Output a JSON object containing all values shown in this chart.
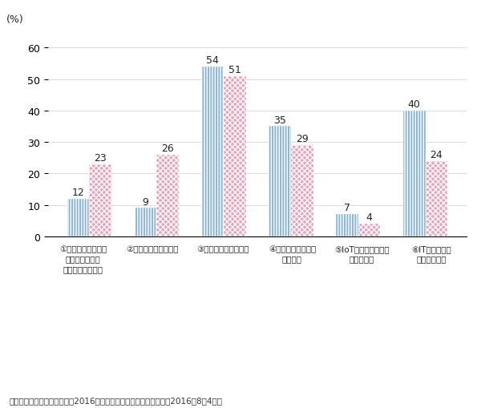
{
  "categories_lines": [
    [
      "①マイナンバー制度",
      "導入等の外的な",
      "制度改正への対応"
    ],
    [
      "②顧客サービスの向上"
    ],
    [
      "③省力化や生産性向上"
    ],
    [
      "④情報セキュリティ",
      "対策強化"
    ],
    [
      "⑤IoT、ビッグデータ",
      "活用のため"
    ],
    [
      "⑥IT化の進展で",
      "傾向的に増加"
    ]
  ],
  "manufacturing": [
    12,
    9,
    54,
    35,
    7,
    40
  ],
  "non_manufacturing": [
    23,
    26,
    51,
    29,
    4,
    24
  ],
  "bar_color_manufacturing": "#8ab4d8",
  "bar_color_non_manufacturing": "#f0a0b8",
  "ylabel": "(%)",
  "ylim": [
    0,
    65
  ],
  "yticks": [
    0,
    10,
    20,
    30,
    40,
    50,
    60
  ],
  "footnote": "（出典）日本政策投賄銀行「2016年度設備投賄計画調査の概要」（2016年8月4日）",
  "background_color": "#ffffff",
  "grid_color": "#dddddd"
}
